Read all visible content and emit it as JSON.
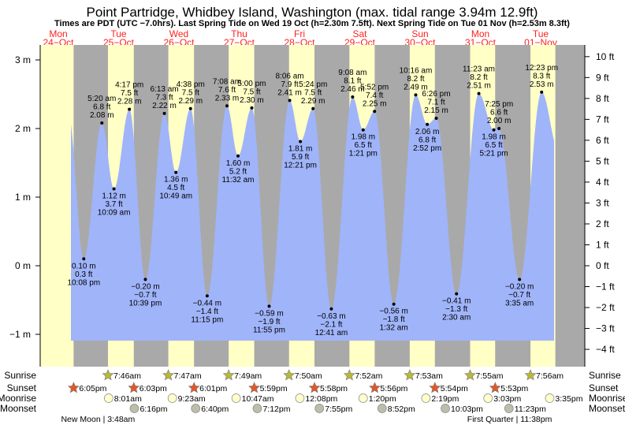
{
  "title": "Point Partridge, Whidbey Island, Washington (max. tidal range 3.94m 12.9ft)",
  "subtitle": "Times are PDT (UTC −7.0hrs). Last Spring Tide on Wed 19 Oct (h=2.30m 7.5ft). Next Spring Tide on Tue 01 Nov (h=2.53m 8.3ft)",
  "colors": {
    "day": "#ffffc6",
    "night": "#a9a9a9",
    "water": "#a0b4fa",
    "day_label": "#ff2020",
    "sunrise": "#b8b83a",
    "sunset": "#e0582a",
    "moonrise": "#ffffcc",
    "moonset": "#bdbdaa"
  },
  "chart_data": {
    "type": "area",
    "title": "Point Partridge, Whidbey Island, Washington (max. tidal range 3.94m 12.9ft)",
    "days": [
      {
        "weekday": "Mon",
        "date": "24−Oct"
      },
      {
        "weekday": "Tue",
        "date": "25−Oct"
      },
      {
        "weekday": "Wed",
        "date": "26−Oct"
      },
      {
        "weekday": "Thu",
        "date": "27−Oct"
      },
      {
        "weekday": "Fri",
        "date": "28−Oct"
      },
      {
        "weekday": "Sat",
        "date": "29−Oct"
      },
      {
        "weekday": "Sun",
        "date": "30−Oct"
      },
      {
        "weekday": "Mon",
        "date": "31−Oct"
      },
      {
        "weekday": "Tue",
        "date": "01−Nov"
      }
    ],
    "y_left": {
      "unit": "m",
      "ylim": [
        -1.1,
        3.2
      ],
      "ticks": [
        "3 m",
        "2 m",
        "1 m",
        "0 m",
        "−1 m"
      ],
      "tick_values": [
        3,
        2,
        1,
        0,
        -1
      ]
    },
    "y_right": {
      "unit": "ft",
      "tick_values": [
        10,
        9,
        8,
        7,
        6,
        5,
        4,
        3,
        2,
        1,
        0,
        -1,
        -2,
        -3,
        -4
      ],
      "ticks": [
        "10 ft",
        "9 ft",
        "8 ft",
        "7 ft",
        "6 ft",
        "5 ft",
        "4 ft",
        "3 ft",
        "2 ft",
        "1 ft",
        "0 ft",
        "−1 ft",
        "−2 ft",
        "−3 ft",
        "−4 ft"
      ]
    },
    "tides": [
      {
        "day": 0,
        "time": "10:08 pm",
        "m": 0.1,
        "m_label": "0.10 m",
        "ft_label": "0.3 ft",
        "type": "low"
      },
      {
        "day": 1,
        "time": "5:20 am",
        "m": 2.08,
        "m_label": "2.08 m",
        "ft_label": "6.8 ft",
        "type": "high"
      },
      {
        "day": 1,
        "time": "10:09 am",
        "m": 1.12,
        "m_label": "1.12 m",
        "ft_label": "3.7 ft",
        "type": "low"
      },
      {
        "day": 1,
        "time": "4:17 pm",
        "m": 2.28,
        "m_label": "2.28 m",
        "ft_label": "7.5 ft",
        "type": "high"
      },
      {
        "day": 1,
        "time": "10:39 pm",
        "m": -0.2,
        "m_label": "−0.20 m",
        "ft_label": "−0.7 ft",
        "type": "low"
      },
      {
        "day": 2,
        "time": "6:13 am",
        "m": 2.22,
        "m_label": "2.22 m",
        "ft_label": "7.3 ft",
        "type": "high"
      },
      {
        "day": 2,
        "time": "10:49 am",
        "m": 1.36,
        "m_label": "1.36 m",
        "ft_label": "4.5 ft",
        "type": "low"
      },
      {
        "day": 2,
        "time": "4:38 pm",
        "m": 2.29,
        "m_label": "2.29 m",
        "ft_label": "7.5 ft",
        "type": "high"
      },
      {
        "day": 2,
        "time": "11:15 pm",
        "m": -0.44,
        "m_label": "−0.44 m",
        "ft_label": "−1.4 ft",
        "type": "low"
      },
      {
        "day": 3,
        "time": "7:08 am",
        "m": 2.33,
        "m_label": "2.33 m",
        "ft_label": "7.6 ft",
        "type": "high"
      },
      {
        "day": 3,
        "time": "11:32 am",
        "m": 1.6,
        "m_label": "1.60 m",
        "ft_label": "5.2 ft",
        "type": "low"
      },
      {
        "day": 3,
        "time": "5:00 pm",
        "m": 2.3,
        "m_label": "2.30 m",
        "ft_label": "7.5 ft",
        "type": "high"
      },
      {
        "day": 3,
        "time": "11:55 pm",
        "m": -0.59,
        "m_label": "−0.59 m",
        "ft_label": "−1.9 ft",
        "type": "low"
      },
      {
        "day": 4,
        "time": "8:06 am",
        "m": 2.41,
        "m_label": "2.41 m",
        "ft_label": "7.9 ft",
        "type": "high"
      },
      {
        "day": 4,
        "time": "12:21 pm",
        "m": 1.81,
        "m_label": "1.81 m",
        "ft_label": "5.9 ft",
        "type": "low"
      },
      {
        "day": 4,
        "time": "5:24 pm",
        "m": 2.29,
        "m_label": "2.29 m",
        "ft_label": "7.5 ft",
        "type": "high"
      },
      {
        "day": 5,
        "time": "12:41 am",
        "m": -0.63,
        "m_label": "−0.63 m",
        "ft_label": "−2.1 ft",
        "type": "low"
      },
      {
        "day": 5,
        "time": "9:08 am",
        "m": 2.46,
        "m_label": "2.46 m",
        "ft_label": "8.1 ft",
        "type": "high"
      },
      {
        "day": 5,
        "time": "1:21 pm",
        "m": 1.98,
        "m_label": "1.98 m",
        "ft_label": "6.5 ft",
        "type": "low"
      },
      {
        "day": 5,
        "time": "5:52 pm",
        "m": 2.25,
        "m_label": "2.25 m",
        "ft_label": "7.4 ft",
        "type": "high"
      },
      {
        "day": 6,
        "time": "1:32 am",
        "m": -0.56,
        "m_label": "−0.56 m",
        "ft_label": "−1.8 ft",
        "type": "low"
      },
      {
        "day": 6,
        "time": "10:16 am",
        "m": 2.49,
        "m_label": "2.49 m",
        "ft_label": "8.2 ft",
        "type": "high"
      },
      {
        "day": 6,
        "time": "2:52 pm",
        "m": 2.06,
        "m_label": "2.06 m",
        "ft_label": "6.8 ft",
        "type": "low"
      },
      {
        "day": 6,
        "time": "6:26 pm",
        "m": 2.15,
        "m_label": "2.15 m",
        "ft_label": "7.1 ft",
        "type": "high"
      },
      {
        "day": 7,
        "time": "2:30 am",
        "m": -0.41,
        "m_label": "−0.41 m",
        "ft_label": "−1.3 ft",
        "type": "low"
      },
      {
        "day": 7,
        "time": "11:23 am",
        "m": 2.51,
        "m_label": "2.51 m",
        "ft_label": "8.2 ft",
        "type": "high"
      },
      {
        "day": 7,
        "time": "5:21 pm",
        "m": 1.98,
        "m_label": "1.98 m",
        "ft_label": "6.5 ft",
        "type": "low"
      },
      {
        "day": 7,
        "time": "7:25 pm",
        "m": 2.0,
        "m_label": "2.00 m",
        "ft_label": "6.6 ft",
        "type": "high"
      },
      {
        "day": 8,
        "time": "3:35 am",
        "m": -0.2,
        "m_label": "−0.20 m",
        "ft_label": "−0.7 ft",
        "type": "low"
      },
      {
        "day": 8,
        "time": "12:23 pm",
        "m": 2.53,
        "m_label": "2.53 m",
        "ft_label": "8.3 ft",
        "type": "high"
      }
    ],
    "rows": {
      "sunrise": {
        "label": "Sunrise",
        "events": [
          {
            "day": 1,
            "time": "7:46am"
          },
          {
            "day": 2,
            "time": "7:47am"
          },
          {
            "day": 3,
            "time": "7:49am"
          },
          {
            "day": 4,
            "time": "7:50am"
          },
          {
            "day": 5,
            "time": "7:52am"
          },
          {
            "day": 6,
            "time": "7:53am"
          },
          {
            "day": 7,
            "time": "7:55am"
          },
          {
            "day": 8,
            "time": "7:56am"
          }
        ]
      },
      "sunset": {
        "label": "Sunset",
        "events": [
          {
            "day": 0,
            "time": "6:05pm"
          },
          {
            "day": 1,
            "time": "6:03pm"
          },
          {
            "day": 2,
            "time": "6:01pm"
          },
          {
            "day": 3,
            "time": "5:59pm"
          },
          {
            "day": 4,
            "time": "5:58pm"
          },
          {
            "day": 5,
            "time": "5:56pm"
          },
          {
            "day": 6,
            "time": "5:54pm"
          },
          {
            "day": 7,
            "time": "5:53pm"
          }
        ]
      },
      "moonrise": {
        "label": "Moonrise",
        "events": [
          {
            "day": 1,
            "time": "8:01am"
          },
          {
            "day": 2,
            "time": "9:23am"
          },
          {
            "day": 3,
            "time": "10:47am"
          },
          {
            "day": 4,
            "time": "12:08pm"
          },
          {
            "day": 5,
            "time": "1:20pm"
          },
          {
            "day": 6,
            "time": "2:19pm"
          },
          {
            "day": 7,
            "time": "3:03pm"
          },
          {
            "day": 8,
            "time": "3:35pm"
          }
        ]
      },
      "moonset": {
        "label": "Moonset",
        "events": [
          {
            "day": 1,
            "time": "6:16pm"
          },
          {
            "day": 2,
            "time": "6:40pm"
          },
          {
            "day": 3,
            "time": "7:12pm"
          },
          {
            "day": 4,
            "time": "7:55pm"
          },
          {
            "day": 5,
            "time": "8:52pm"
          },
          {
            "day": 6,
            "time": "10:03pm"
          },
          {
            "day": 7,
            "time": "11:23pm"
          }
        ]
      }
    },
    "moon_phases": [
      {
        "day": 1,
        "time": "3:48am",
        "text": "New Moon | 3:48am"
      },
      {
        "day": 7,
        "time": "11:38pm",
        "text": "First Quarter | 11:38pm"
      }
    ]
  }
}
